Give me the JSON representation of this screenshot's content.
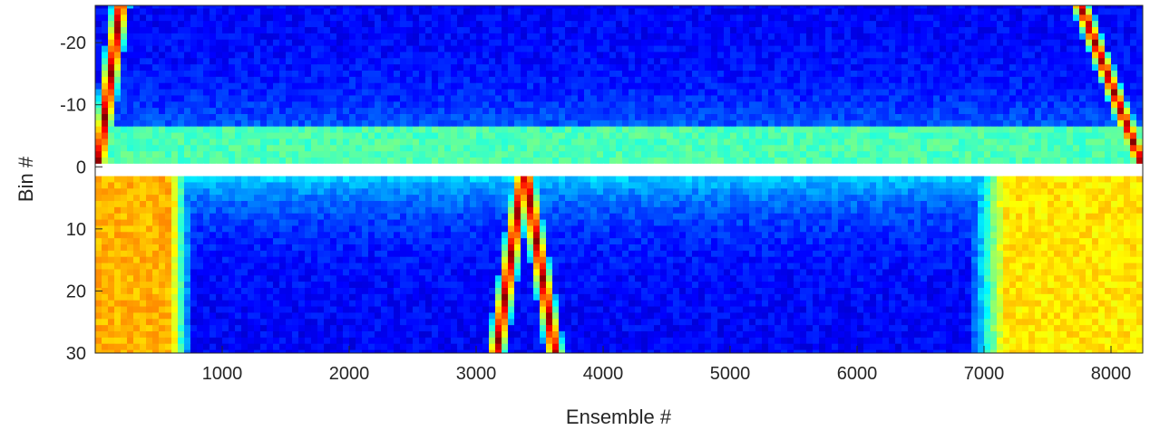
{
  "chart_data": {
    "type": "heatmap",
    "title": "",
    "xlabel": "Ensemble #",
    "ylabel": "Bin #",
    "xlim": [
      0,
      8250
    ],
    "ylim": [
      -26,
      30
    ],
    "y_reversed": true,
    "colormap": "jet",
    "grid": false,
    "xticks": [
      1000,
      2000,
      3000,
      4000,
      5000,
      6000,
      7000,
      8000
    ],
    "yticks": [
      -20,
      -10,
      0,
      10,
      20,
      30
    ],
    "gap_bins": [
      0,
      1
    ],
    "gap_color": "#ffffff",
    "ensemble_step": 50,
    "bins": [
      -26,
      -25,
      -24,
      -23,
      -22,
      -21,
      -20,
      -19,
      -18,
      -17,
      -16,
      -15,
      -14,
      -13,
      -12,
      -11,
      -10,
      -9,
      -8,
      -7,
      -6,
      -5,
      -4,
      -3,
      -2,
      -1,
      0,
      1,
      2,
      3,
      4,
      5,
      6,
      7,
      8,
      9,
      10,
      11,
      12,
      13,
      14,
      15,
      16,
      17,
      18,
      19,
      20,
      21,
      22,
      23,
      24,
      25,
      26,
      27,
      28,
      29,
      30
    ],
    "regions": [
      {
        "name": "left-warm-patch",
        "ensemble_range": [
          0,
          800
        ],
        "bin_range": [
          1,
          30
        ],
        "level": 0.7
      },
      {
        "name": "right-warm-patch",
        "ensemble_range": [
          6800,
          8250
        ],
        "bin_range": [
          1,
          30
        ],
        "level": 0.65
      },
      {
        "name": "near-surface-band",
        "ensemble_range": [
          0,
          8250
        ],
        "bin_range": [
          -6,
          -1
        ],
        "level": 0.45
      }
    ],
    "tracks": [
      {
        "name": "left-diagonal-track",
        "points": [
          [
            20,
            0
          ],
          [
            200,
            -26
          ]
        ],
        "level": 1.0
      },
      {
        "name": "central-v-track-left",
        "points": [
          [
            3380,
            0
          ],
          [
            3160,
            30
          ]
        ],
        "level": 1.0
      },
      {
        "name": "central-v-track-right",
        "points": [
          [
            3380,
            0
          ],
          [
            3620,
            30
          ]
        ],
        "level": 1.0
      },
      {
        "name": "right-diagonal-track",
        "points": [
          [
            7760,
            -26
          ],
          [
            8250,
            0
          ]
        ],
        "level": 1.0
      }
    ]
  }
}
